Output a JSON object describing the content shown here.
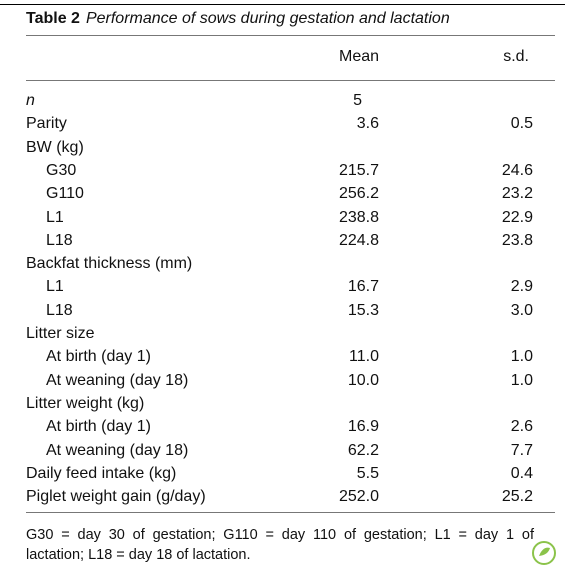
{
  "table": {
    "title": {
      "label": "Table 2",
      "caption": "Performance of sows during gestation and lactation"
    },
    "columns": [
      "Mean",
      "s.d."
    ],
    "rows": [
      {
        "label": "n",
        "mean": "5"
      },
      {
        "label": "Parity",
        "mean": "3.6",
        "sd": "0.5"
      },
      {
        "label": "BW (kg)",
        "rows": [
          {
            "label": "G30",
            "mean": "215.7",
            "sd": "24.6"
          },
          {
            "label": "G110",
            "mean": "256.2",
            "sd": "23.2"
          },
          {
            "label": "L1",
            "mean": "238.8",
            "sd": "22.9"
          },
          {
            "label": "L18",
            "mean": "224.8",
            "sd": "23.8"
          }
        ]
      },
      {
        "label": "Backfat thickness (mm)",
        "rows": [
          {
            "label": "L1",
            "mean": "16.7",
            "sd": "2.9"
          },
          {
            "label": "L18",
            "mean": "15.3",
            "sd": "3.0"
          }
        ]
      },
      {
        "label": "Litter size",
        "rows": [
          {
            "label": "At birth (day 1)",
            "mean": "11.0",
            "sd": "1.0"
          },
          {
            "label": "At weaning (day 18)",
            "mean": "10.0",
            "sd": "1.0"
          }
        ]
      },
      {
        "label": "Litter weight (kg)",
        "rows": [
          {
            "label": "At birth (day 1)",
            "mean": "16.9",
            "sd": "2.6"
          },
          {
            "label": "At weaning (day 18)",
            "mean": "62.2",
            "sd": "7.7"
          }
        ]
      },
      {
        "label": "Daily feed intake (kg)",
        "mean": "5.5",
        "sd": "0.4"
      },
      {
        "label": "Piglet weight gain (g/day)",
        "mean": "252.0",
        "sd": "25.2"
      }
    ],
    "footnote": "G30 = day 30 of gestation; G110 = day 110 of gestation; L1 = day 1 of lactation; L18 = day 18 of lactation."
  }
}
